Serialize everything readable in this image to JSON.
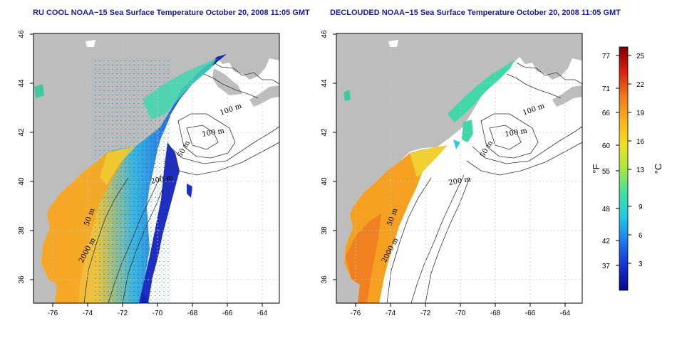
{
  "panels": [
    {
      "title": "RU COOL NOAA−15 Sea Surface Temperature October 20, 2008 11:05 GMT",
      "x_ticks": [
        "-76",
        "-74",
        "-72",
        "-70",
        "-68",
        "-66",
        "-64"
      ],
      "y_ticks": [
        "46",
        "44",
        "42",
        "40",
        "38",
        "36"
      ],
      "contour_labels": [
        "100 m",
        "100 m",
        "50 m",
        "200 m",
        "50 m",
        "2000 m"
      ]
    },
    {
      "title": "DECLOUDED NOAA−15 Sea Surface Temperature October 20, 2008 11:05 GMT",
      "x_ticks": [
        "-76",
        "-74",
        "-72",
        "-70",
        "-68",
        "-66",
        "-64"
      ],
      "y_ticks": [
        "46",
        "44",
        "42",
        "40",
        "38",
        "36"
      ],
      "contour_labels": [
        "100 m",
        "100 m",
        "50 m",
        "200 m",
        "50 m",
        "2000 m"
      ]
    }
  ],
  "colorbar": {
    "fahrenheit_label": "°F",
    "celsius_label": "°C",
    "fahrenheit_ticks": [
      "77",
      "71",
      "66",
      "60",
      "55",
      "48",
      "42",
      "37"
    ],
    "celsius_ticks": [
      "25",
      "22",
      "19",
      "16",
      "13",
      "9",
      "6",
      "3"
    ],
    "colors": [
      "#08088a",
      "#1432d2",
      "#1e78f0",
      "#20c8e8",
      "#40e0a0",
      "#a8e840",
      "#f0e020",
      "#f8b020",
      "#f07818",
      "#d82010",
      "#800000"
    ]
  },
  "colors": {
    "land": "#bdbdbd",
    "title": "#1a1aa8"
  }
}
